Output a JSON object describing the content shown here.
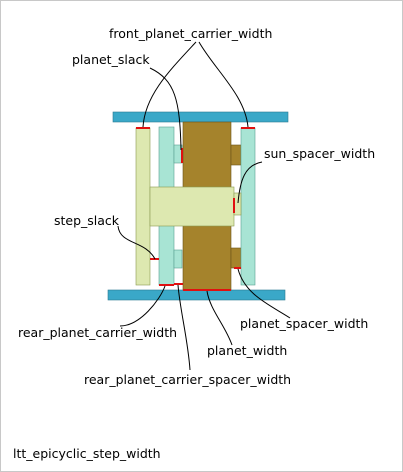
{
  "labels": {
    "front_planet_carrier_width": "front_planet_carrier_width",
    "planet_slack": "planet_slack",
    "sun_spacer_width": "sun_spacer_width",
    "step_slack": "step_slack",
    "rear_planet_carrier_width": "rear_planet_carrier_width",
    "planet_spacer_width": "planet_spacer_width",
    "planet_width": "planet_width",
    "rear_planet_carrier_spacer_width": "rear_planet_carrier_spacer_width",
    "caption": "ltt_epicyclic_step_width"
  },
  "colors": {
    "outer_plate": "#3aa8c8",
    "carrier_left": "#dde8b0",
    "carrier_right": "#a8e4d4",
    "planet": "#a5832c",
    "sun": "#dde8b0",
    "dimension_mark": "#e01010",
    "leader_line": "#000000",
    "border": "#c8c8c8"
  }
}
